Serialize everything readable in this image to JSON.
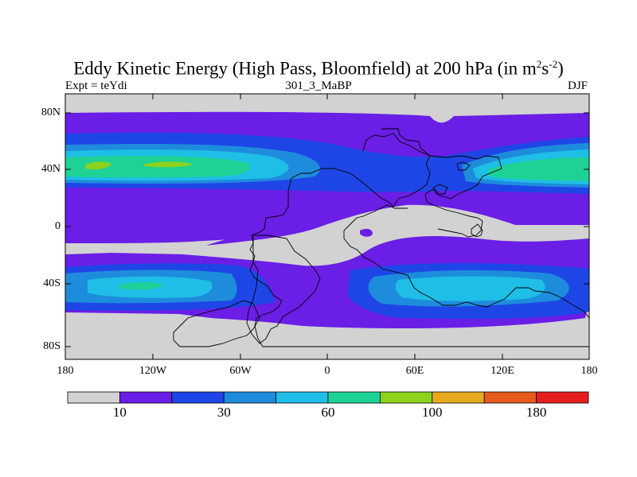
{
  "title": {
    "main": "Eddy Kinetic Energy (High Pass, Bloomfield) at 200 hPa (in m",
    "sup1": "2",
    "mid": "s",
    "sup2": "-2",
    "end": ")"
  },
  "subtitle": {
    "left": "Expt = teYdi",
    "center": "301_3_MaBP",
    "right": "DJF"
  },
  "axes": {
    "lat_labels": [
      "80N",
      "40N",
      "0",
      "40S",
      "80S"
    ],
    "lon_labels": [
      "180",
      "120W",
      "60W",
      "0",
      "60E",
      "120E",
      "180"
    ]
  },
  "colors": {
    "gray": "#d2d2d2",
    "purple": "#6a1ee6",
    "blue": "#1e46e6",
    "medblue": "#1e8cdc",
    "cyan": "#1ebee6",
    "teal": "#1ed296",
    "green": "#8cd21e",
    "yellow": "#e6aa1e",
    "orange": "#e65a1e",
    "red": "#e61e1e"
  },
  "colorbar": {
    "colors": [
      "#d2d2d2",
      "#6a1ee6",
      "#1e46e6",
      "#1e8cdc",
      "#1ebee6",
      "#1ed296",
      "#8cd21e",
      "#e6aa1e",
      "#e65a1e",
      "#e61e1e"
    ],
    "labels": [
      "10",
      "30",
      "60",
      "100",
      "180"
    ]
  }
}
